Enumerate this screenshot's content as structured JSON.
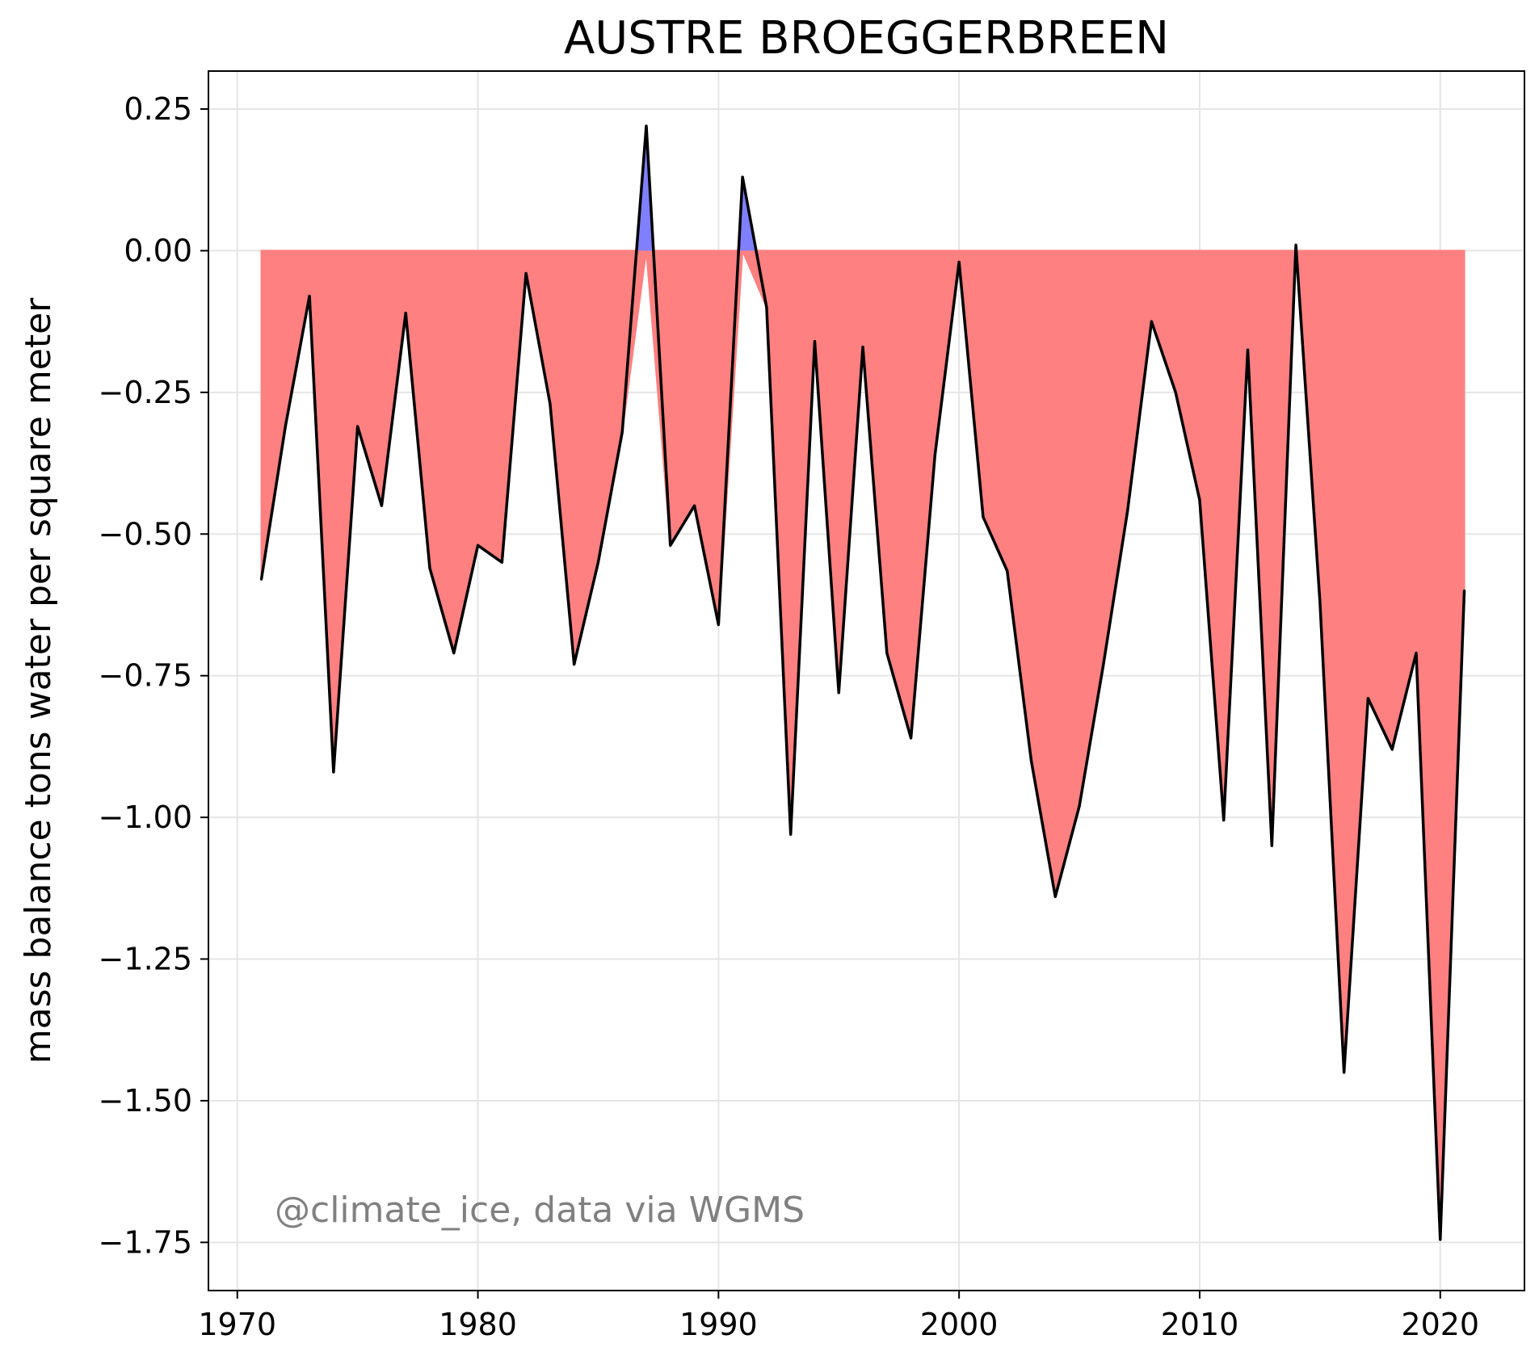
{
  "chart_data": {
    "type": "area",
    "title": "AUSTRE BROEGGERBREEN",
    "xlabel": "",
    "ylabel": "mass balance tons water per square meter",
    "annotation": "@climate_ice, data via WGMS",
    "xlim": [
      1968.8,
      2023.5
    ],
    "ylim": [
      -1.835,
      0.317
    ],
    "xticks": [
      1970,
      1980,
      1990,
      2000,
      2010,
      2020
    ],
    "yticks": [
      0.25,
      0.0,
      -0.25,
      -0.5,
      -0.75,
      -1.0,
      -1.25,
      -1.5,
      -1.75
    ],
    "ytick_labels": [
      "0.25",
      "0.00",
      "−0.25",
      "−0.50",
      "−0.75",
      "−1.00",
      "−1.25",
      "−1.50",
      "−1.75"
    ],
    "grid": true,
    "baseline": 0,
    "colors": {
      "line": "#000000",
      "negative_fill": "#ff8080",
      "positive_fill": "#8080ff",
      "grid": "#e5e5e5",
      "annotation": "#808080"
    },
    "x": [
      1971,
      1972,
      1973,
      1974,
      1975,
      1976,
      1977,
      1978,
      1979,
      1980,
      1981,
      1982,
      1983,
      1984,
      1985,
      1986,
      1987,
      1988,
      1989,
      1990,
      1991,
      1992,
      1993,
      1994,
      1995,
      1996,
      1997,
      1998,
      1999,
      2000,
      2001,
      2002,
      2003,
      2004,
      2005,
      2006,
      2007,
      2008,
      2009,
      2010,
      2011,
      2012,
      2013,
      2014,
      2015,
      2016,
      2017,
      2018,
      2019,
      2020,
      2021
    ],
    "series": [
      {
        "values": [
          -0.58,
          -0.31,
          -0.08,
          -0.92,
          -0.31,
          -0.45,
          -0.11,
          -0.56,
          -0.71,
          -0.52,
          -0.55,
          -0.04,
          -0.27,
          -0.73,
          -0.55,
          -0.32,
          0.22,
          -0.52,
          -0.45,
          -0.66,
          0.13,
          -0.1,
          -1.03,
          -0.16,
          -0.78,
          -0.17,
          -0.71,
          -0.86,
          -0.36,
          -0.02,
          -0.47,
          -0.565,
          -0.9,
          -1.14,
          -0.98,
          -0.73,
          -0.46,
          -0.125,
          -0.25,
          -0.44,
          -1.005,
          -0.175,
          -1.05,
          0.01,
          -0.62,
          -1.45,
          -0.79,
          -0.88,
          -0.71,
          -1.745,
          -0.6
        ]
      }
    ]
  }
}
